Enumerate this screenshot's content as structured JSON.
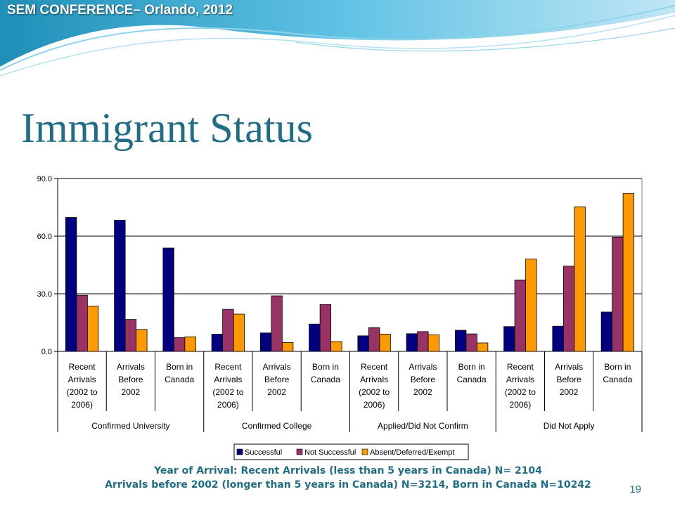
{
  "header": {
    "conference": "SEM CONFERENCE– Orlando, 2012"
  },
  "slide": {
    "title": "Immigrant Status",
    "page_number": "19"
  },
  "footnote": {
    "line1": "Year of Arrival: Recent Arrivals (less than 5 years in Canada) N= 2104",
    "line2": "Arrivals before 2002 (longer than 5 years in Canada)  N=3214, Born in Canada N=10242"
  },
  "colors": {
    "series": [
      "#000080",
      "#993366",
      "#ff9900"
    ],
    "title": "#1f6e86"
  },
  "chart_data": {
    "type": "bar",
    "title": "",
    "xlabel": "",
    "ylabel": "",
    "ylim": [
      0,
      90
    ],
    "yticks": [
      "0.0",
      "30.0",
      "60.0",
      "90.0"
    ],
    "grid": true,
    "legend_position": "bottom",
    "groups": [
      {
        "label": "Confirmed University",
        "categories": [
          [
            "Recent",
            "Arrivals",
            "(2002 to",
            "2006)"
          ],
          [
            "Arrivals",
            "Before",
            "2002"
          ],
          [
            "Born in",
            "Canada"
          ]
        ]
      },
      {
        "label": "Confirmed College",
        "categories": [
          [
            "Recent",
            "Arrivals",
            "(2002 to",
            "2006)"
          ],
          [
            "Arrivals",
            "Before",
            "2002"
          ],
          [
            "Born in",
            "Canada"
          ]
        ]
      },
      {
        "label": "Applied/Did Not Confirm",
        "categories": [
          [
            "Recent",
            "Arrivals",
            "(2002 to",
            "2006)"
          ],
          [
            "Arrivals",
            "Before",
            "2002"
          ],
          [
            "Born in",
            "Canada"
          ]
        ]
      },
      {
        "label": "Did Not Apply",
        "categories": [
          [
            "Recent",
            "Arrivals",
            "(2002 to",
            "2006)"
          ],
          [
            "Arrivals",
            "Before",
            "2002"
          ],
          [
            "Born in",
            "Canada"
          ]
        ]
      }
    ],
    "series": [
      {
        "name": "Successful",
        "values": [
          69.7,
          68.3,
          53.8,
          9.0,
          9.6,
          14.2,
          8.1,
          9.2,
          11.0,
          12.9,
          13.1,
          20.5
        ]
      },
      {
        "name": "Not Successful",
        "values": [
          29.2,
          16.6,
          7.2,
          21.9,
          28.9,
          24.4,
          12.4,
          10.3,
          9.1,
          37.2,
          44.4,
          59.5
        ]
      },
      {
        "name": "Absent/Deferred/Exempt",
        "values": [
          23.6,
          11.4,
          7.6,
          19.4,
          4.6,
          5.1,
          9.0,
          8.6,
          4.4,
          48.1,
          75.3,
          82.2
        ]
      }
    ]
  }
}
